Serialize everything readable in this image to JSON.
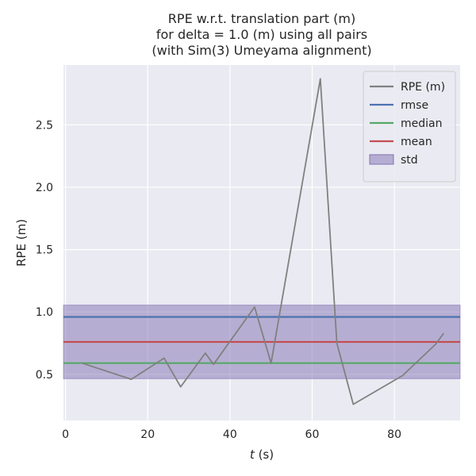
{
  "chart_data": {
    "type": "line",
    "title_lines": [
      "RPE w.r.t. translation part (m)",
      "for delta = 1.0 (m) using all pairs",
      "(with Sim(3) Umeyama alignment)"
    ],
    "xlabel_italic": "t",
    "xlabel_rest": " (s)",
    "ylabel": "RPE (m)",
    "xlim": [
      -0.5,
      96
    ],
    "ylim": [
      0.13,
      2.98
    ],
    "x_ticks": [
      0,
      20,
      40,
      60,
      80
    ],
    "y_ticks": [
      0.5,
      1.0,
      1.5,
      2.0,
      2.5
    ],
    "y_tick_labels": [
      "0.5",
      "1.0",
      "1.5",
      "2.0",
      "2.5"
    ],
    "grid": true,
    "legend_position": "top-right",
    "series": [
      {
        "name": "RPE (m)",
        "color": "#808080",
        "x": [
          4,
          16,
          24,
          28,
          34,
          36,
          46,
          50,
          62,
          66,
          70,
          82,
          90,
          92
        ],
        "y": [
          0.59,
          0.46,
          0.63,
          0.4,
          0.67,
          0.58,
          1.04,
          0.59,
          2.87,
          0.75,
          0.26,
          0.49,
          0.74,
          0.83
        ]
      }
    ],
    "reference_lines": [
      {
        "name": "rmse",
        "value": 0.96,
        "color": "#4c72b0"
      },
      {
        "name": "median",
        "value": 0.59,
        "color": "#55a868"
      },
      {
        "name": "mean",
        "value": 0.76,
        "color": "#c44e52"
      }
    ],
    "std_band": {
      "name": "std",
      "low": 0.465,
      "high": 1.055,
      "color": "#8172b2"
    }
  }
}
